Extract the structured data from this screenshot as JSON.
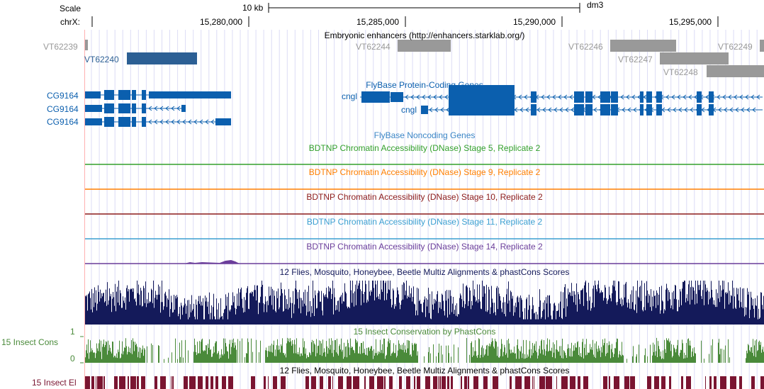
{
  "header": {
    "scale_label": "Scale",
    "chrom_label": "chrX:",
    "scale_bar_text": "10 kb",
    "assembly": "dm3",
    "ticks": [
      "15,280,000",
      "15,285,000",
      "15,290,000",
      "15,295,000"
    ]
  },
  "tracks": {
    "enhancers": {
      "title": "Embryonic enhancers (http://enhancers.starklab.org/)",
      "items": [
        "VT62239",
        "VT62240",
        "VT62244",
        "VT62246",
        "VT62247",
        "VT62248",
        "VT62249"
      ]
    },
    "coding_genes": {
      "title": "FlyBase Protein-Coding Genes",
      "left_gene_labels": [
        "CG9164",
        "CG9164",
        "CG9164"
      ],
      "right_gene_labels": [
        "cngl",
        "cngl"
      ]
    },
    "noncoding": {
      "title": "FlyBase Noncoding Genes"
    },
    "dnase_5": {
      "title": "BDTNP Chromatin Accessibility (DNase) Stage 5, Replicate 2"
    },
    "dnase_9": {
      "title": "BDTNP Chromatin Accessibility (DNase) Stage 9, Replicate 2"
    },
    "dnase_10": {
      "title": "BDTNP Chromatin Accessibility (DNase) Stage 10, Replicate 2"
    },
    "dnase_11": {
      "title": "BDTNP Chromatin Accessibility (DNase) Stage 11, Replicate 2"
    },
    "dnase_14": {
      "title": "BDTNP Chromatin Accessibility (DNase) Stage 14, Replicate 2"
    },
    "multiz": {
      "title": "12 Flies, Mosquito, Honeybee, Beetle Multiz Alignments & phastCons Scores"
    },
    "phastcons": {
      "title": "15 Insect Conservation by PhastCons",
      "side_label": "15 Insect Cons",
      "axis_max": "1",
      "axis_min": "0"
    },
    "elements": {
      "title": "12 Flies, Mosquito, Honeybee, Beetle Multiz Alignments & phastCons Scores",
      "side_label": "15 Insect El"
    }
  },
  "colors": {
    "gene_blue": "#0b5fae",
    "enhancer_grey": "#999999",
    "enhancer_blue": "#2c5f94",
    "dnase5_green": "#33a02c",
    "dnase9_orange": "#ff7f00",
    "dnase10_maroon": "#8b1a1a",
    "dnase11_lightblue": "#3b9fd1",
    "dnase14_purple": "#6a3d9a",
    "multiz_navy": "#141a5a",
    "cons_green": "#4a8a3a",
    "elements_maroon": "#7a1531",
    "guide_line": "#dcdcf5",
    "ruler_red": "#ffb0b0"
  }
}
